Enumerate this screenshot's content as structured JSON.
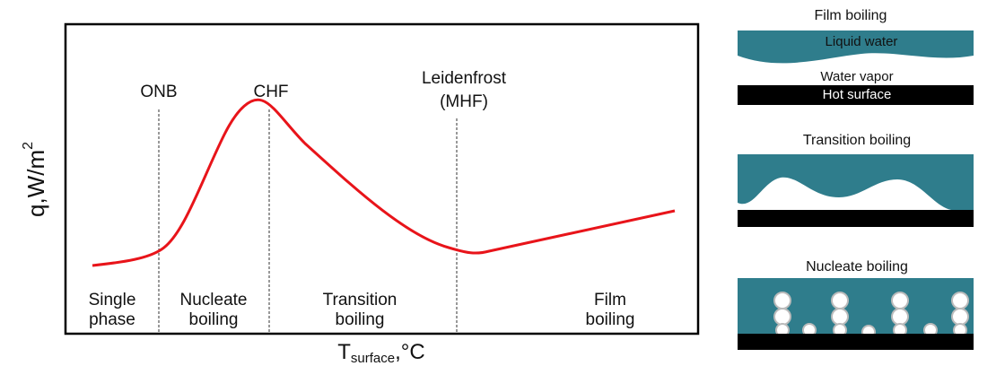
{
  "plot": {
    "y_label": {
      "text": "q,W/m",
      "sup": "2"
    },
    "x_label": {
      "text": "T",
      "sub": "surface",
      "unit": ",°C"
    },
    "markers": [
      {
        "label": [
          "ONB"
        ]
      },
      {
        "label": [
          "CHF"
        ]
      },
      {
        "label": [
          "Leidenfrost",
          "(MHF)"
        ]
      }
    ],
    "regions": [
      [
        "Single",
        "phase"
      ],
      [
        "Nucleate",
        "boiling"
      ],
      [
        "Transition",
        "boiling"
      ],
      [
        "Film",
        "boiling"
      ]
    ]
  },
  "panels": [
    {
      "title": "Film boiling",
      "labels": [
        "Liquid water",
        "Water vapor",
        "Hot surface"
      ]
    },
    {
      "title": "Transition boiling"
    },
    {
      "title": "Nucleate boiling"
    }
  ]
}
